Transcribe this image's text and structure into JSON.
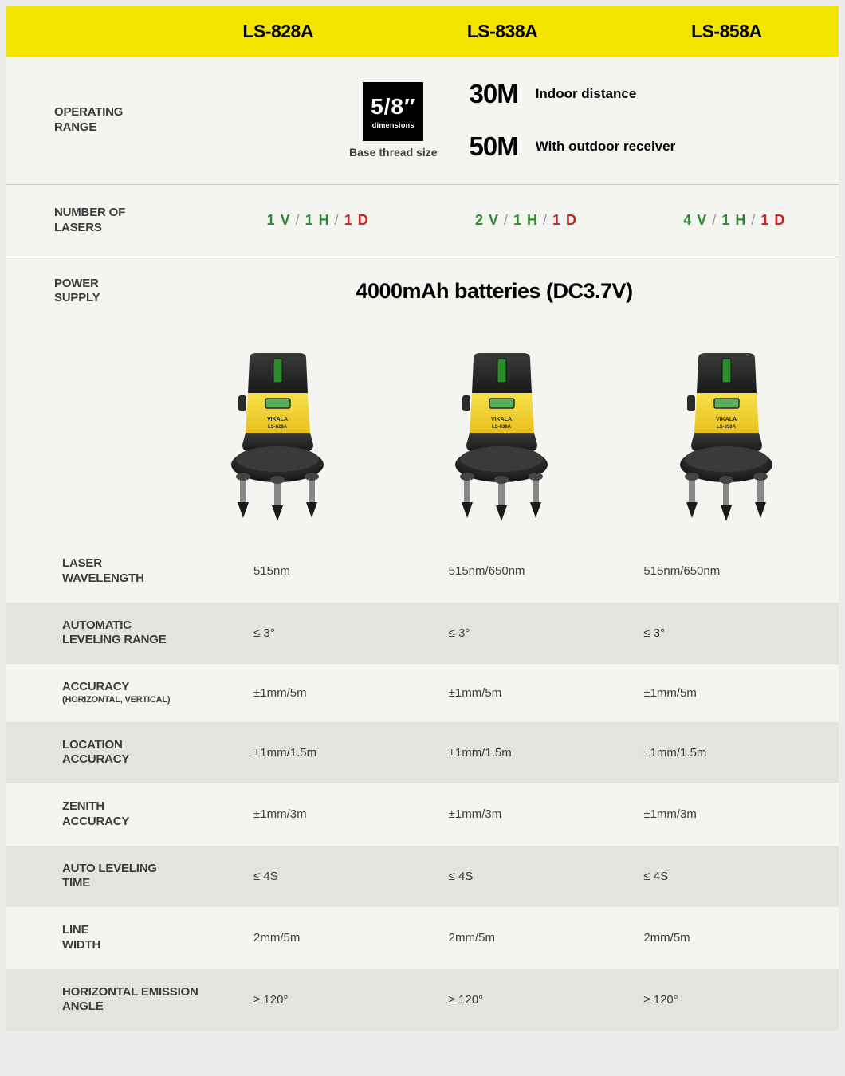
{
  "colors": {
    "page_bg": "#ececea",
    "header_bg": "#f4e500",
    "panel_bg": "#f4f4f1",
    "alt_row_bg": "#e3e3e0",
    "divider": "#c8c8c0",
    "text_dark": "#3c3c3c",
    "laser_green": "#2a8c2a",
    "laser_red": "#d02020",
    "slash_gray": "#9a9a9a",
    "device_yellow": "#f2d534",
    "device_dark": "#2a2a2a"
  },
  "models": [
    "LS-828A",
    "LS-838A",
    "LS-858A"
  ],
  "operating_range": {
    "label_l1": "OPERATING",
    "label_l2": "RANGE",
    "thread": {
      "value": "5/8″",
      "sub": "dimensions",
      "caption": "Base thread size"
    },
    "distances": [
      {
        "value": "30M",
        "label": "Indoor distance"
      },
      {
        "value": "50M",
        "label": "With outdoor receiver"
      }
    ]
  },
  "lasers": {
    "label_l1": "NUMBER OF",
    "label_l2": "LASERS",
    "specs": [
      {
        "v": "1 V",
        "h": "1 H",
        "d": "1 D"
      },
      {
        "v": "2 V",
        "h": "1 H",
        "d": "1 D"
      },
      {
        "v": "4 V",
        "h": "1 H",
        "d": "1 D"
      }
    ]
  },
  "power": {
    "label_l1": "POWER",
    "label_l2": "SUPPLY",
    "text": "4000mAh batteries (DC3.7V)"
  },
  "products": {
    "brand": "VIKALA",
    "model_labels": [
      "LS-828A",
      "LS-838A",
      "LS-858A"
    ]
  },
  "spec_rows": [
    {
      "label_l1": "LASER",
      "label_l2": "WAVELENGTH",
      "values": [
        "515nm",
        "515nm/650nm",
        "515nm/650nm"
      ],
      "alt": false
    },
    {
      "label_l1": "AUTOMATIC",
      "label_l2": "LEVELING RANGE",
      "values": [
        "≤ 3°",
        "≤ 3°",
        "≤ 3°"
      ],
      "alt": true
    },
    {
      "label_l1": "ACCURACY",
      "label_sub": "(HORIZONTAL, VERTICAL)",
      "values": [
        "±1mm/5m",
        "±1mm/5m",
        "±1mm/5m"
      ],
      "alt": false
    },
    {
      "label_l1": "LOCATION",
      "label_l2": "ACCURACY",
      "values": [
        "±1mm/1.5m",
        "±1mm/1.5m",
        "±1mm/1.5m"
      ],
      "alt": true
    },
    {
      "label_l1": "ZENITH",
      "label_l2": "ACCURACY",
      "values": [
        "±1mm/3m",
        "±1mm/3m",
        "±1mm/3m"
      ],
      "alt": false
    },
    {
      "label_l1": "AUTO LEVELING",
      "label_l2": "TIME",
      "values": [
        "≤ 4S",
        "≤ 4S",
        "≤ 4S"
      ],
      "alt": true
    },
    {
      "label_l1": "LINE",
      "label_l2": "WIDTH",
      "values": [
        "2mm/5m",
        "2mm/5m",
        "2mm/5m"
      ],
      "alt": false
    },
    {
      "label_l1": "HORIZONTAL EMISSION",
      "label_l2": "ANGLE",
      "values": [
        "≥ 120°",
        "≥ 120°",
        "≥ 120°"
      ],
      "alt": true
    }
  ]
}
